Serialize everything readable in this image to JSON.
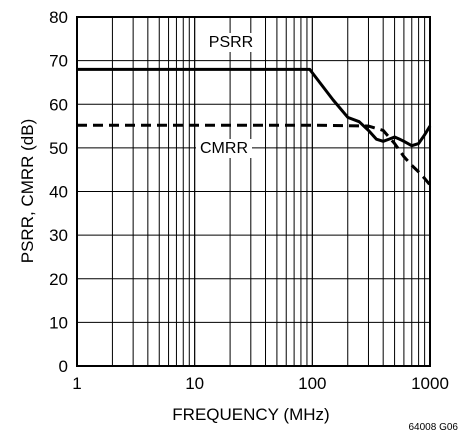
{
  "chart_data": {
    "type": "line",
    "title": "",
    "xlabel": "FREQUENCY (MHz)",
    "ylabel": "PSRR, CMRR (dB)",
    "x_scale": "log",
    "xlim": [
      1,
      1000
    ],
    "ylim": [
      0,
      80
    ],
    "x_ticks": [
      1,
      10,
      100,
      1000
    ],
    "x_tick_labels": [
      "1",
      "10",
      "100",
      "1000"
    ],
    "y_ticks": [
      0,
      10,
      20,
      30,
      40,
      50,
      60,
      70,
      80
    ],
    "y_tick_labels": [
      "0",
      "10",
      "20",
      "30",
      "40",
      "50",
      "60",
      "70",
      "80"
    ],
    "grid": true,
    "series": [
      {
        "name": "PSRR",
        "line_style": "solid",
        "color": "#000000",
        "x": [
          1,
          10,
          95,
          150,
          200,
          250,
          300,
          350,
          400,
          450,
          500,
          550,
          600,
          700,
          800,
          900,
          1000
        ],
        "y": [
          68,
          68,
          68,
          61,
          57,
          56,
          54,
          52,
          51.5,
          52,
          52.5,
          52,
          51.5,
          50.5,
          51,
          53,
          55
        ]
      },
      {
        "name": "CMRR",
        "line_style": "dashed",
        "color": "#000000",
        "x": [
          1,
          10,
          100,
          300,
          400,
          500,
          600,
          700,
          800,
          900,
          1000
        ],
        "y": [
          55.2,
          55.2,
          55.2,
          55,
          54,
          51,
          48,
          46,
          44.5,
          43,
          41.5
        ]
      }
    ],
    "annotations": [
      "PSRR",
      "CMRR"
    ],
    "figure_id": "64008 G06"
  }
}
